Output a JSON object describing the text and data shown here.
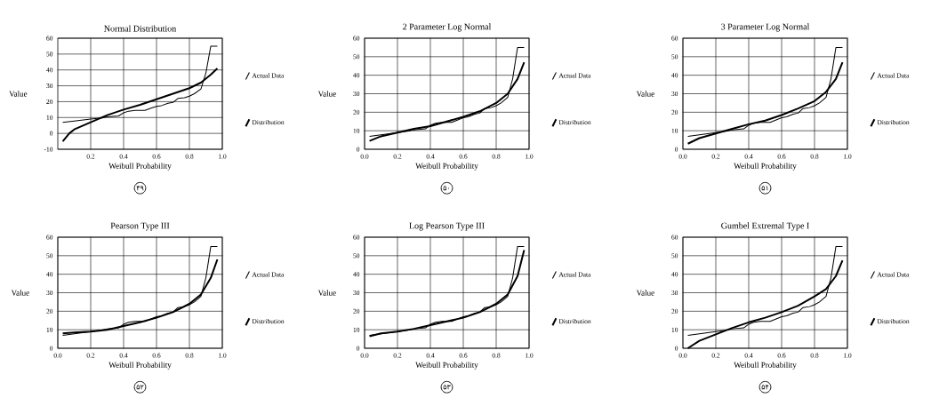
{
  "chart_data": [
    {
      "type": "line",
      "title": "Normal Distribution",
      "xlabel": "Weibull Probability",
      "ylabel": "Value",
      "annotations": [
        "۴۹"
      ],
      "grid": true,
      "legend": "right",
      "xlim": [
        0,
        1.0
      ],
      "ylim": [
        -10,
        60
      ],
      "xticks": [
        {
          "value": 0.2,
          "label": "0.2"
        },
        {
          "value": 0.4,
          "label": "0.4"
        },
        {
          "value": 0.6,
          "label": "0.6"
        },
        {
          "value": 0.8,
          "label": "0.8"
        },
        {
          "value": 1.0,
          "label": "1.0"
        }
      ],
      "yticks": [
        -10,
        0,
        10,
        20,
        30,
        40,
        50,
        60
      ],
      "series": [
        {
          "name": "Actual Data",
          "color": "#000000",
          "x": [
            0.03,
            0.1,
            0.2,
            0.27,
            0.3,
            0.37,
            0.4,
            0.43,
            0.47,
            0.53,
            0.57,
            0.6,
            0.63,
            0.67,
            0.7,
            0.73,
            0.77,
            0.8,
            0.83,
            0.87,
            0.9,
            0.93,
            0.97
          ],
          "values": [
            7,
            7.8,
            9,
            9.8,
            10.5,
            11,
            13,
            14,
            14.5,
            14.5,
            16,
            17,
            17.5,
            19,
            19.5,
            22,
            22.5,
            23.5,
            25,
            28,
            38,
            55,
            55
          ]
        },
        {
          "name": "Distribution",
          "color": "#000000",
          "x": [
            0.03,
            0.07,
            0.1,
            0.2,
            0.3,
            0.4,
            0.5,
            0.6,
            0.7,
            0.8,
            0.87,
            0.93,
            0.97
          ],
          "values": [
            -5,
            0,
            2.5,
            7,
            11.5,
            15,
            18,
            21.5,
            25,
            28.5,
            32,
            37,
            41
          ]
        }
      ]
    },
    {
      "type": "line",
      "title": "2 Parameter Log Normal",
      "xlabel": "Weibull Probability",
      "ylabel": "Value",
      "annotations": [
        "۵۰"
      ],
      "grid": true,
      "legend": "right",
      "xlim": [
        0,
        1.0
      ],
      "ylim": [
        0,
        60
      ],
      "xticks": [
        {
          "value": 0,
          "label": "0.0"
        },
        {
          "value": 0.2,
          "label": "0.2"
        },
        {
          "value": 0.4,
          "label": "0.4"
        },
        {
          "value": 0.6,
          "label": "0.6"
        },
        {
          "value": 0.8,
          "label": "0.8"
        },
        {
          "value": 1.0,
          "label": "1.0"
        }
      ],
      "yticks": [
        0,
        10,
        20,
        30,
        40,
        50,
        60
      ],
      "series": [
        {
          "name": "Actual Data",
          "color": "#000000",
          "x": [
            0.03,
            0.1,
            0.2,
            0.27,
            0.3,
            0.37,
            0.4,
            0.43,
            0.47,
            0.53,
            0.57,
            0.6,
            0.63,
            0.67,
            0.7,
            0.73,
            0.77,
            0.8,
            0.83,
            0.87,
            0.9,
            0.93,
            0.97
          ],
          "values": [
            7,
            7.8,
            9,
            9.8,
            10.5,
            11,
            13,
            14,
            14.5,
            14.5,
            16,
            17,
            17.5,
            19,
            19.5,
            22,
            22.5,
            23.5,
            25,
            28,
            38,
            55,
            55
          ]
        },
        {
          "name": "Distribution",
          "color": "#000000",
          "x": [
            0.03,
            0.1,
            0.2,
            0.3,
            0.4,
            0.5,
            0.6,
            0.7,
            0.8,
            0.87,
            0.93,
            0.97
          ],
          "values": [
            4.5,
            7,
            9,
            11,
            12.5,
            15,
            17.5,
            20.5,
            25,
            30,
            38,
            47
          ]
        }
      ]
    },
    {
      "type": "line",
      "title": "3 Parameter Log Normal",
      "xlabel": "Weibull Probability",
      "ylabel": "Value",
      "annotations": [
        "۵۱"
      ],
      "grid": true,
      "legend": "right",
      "xlim": [
        0,
        1.0
      ],
      "ylim": [
        0,
        60
      ],
      "xticks": [
        {
          "value": 0,
          "label": "0.0"
        },
        {
          "value": 0.2,
          "label": "0.2"
        },
        {
          "value": 0.4,
          "label": "0.4"
        },
        {
          "value": 0.6,
          "label": "0.6"
        },
        {
          "value": 0.8,
          "label": "0.8"
        },
        {
          "value": 1.0,
          "label": "1.0"
        }
      ],
      "yticks": [
        0,
        10,
        20,
        30,
        40,
        50,
        60
      ],
      "series": [
        {
          "name": "Actual Data",
          "color": "#000000",
          "x": [
            0.03,
            0.1,
            0.2,
            0.27,
            0.3,
            0.37,
            0.4,
            0.43,
            0.47,
            0.53,
            0.57,
            0.6,
            0.63,
            0.67,
            0.7,
            0.73,
            0.77,
            0.8,
            0.83,
            0.87,
            0.9,
            0.93,
            0.97
          ],
          "values": [
            7,
            7.8,
            9,
            9.8,
            10.5,
            11,
            13,
            14,
            14.5,
            14.5,
            16,
            17,
            17.5,
            19,
            19.5,
            22,
            22.5,
            23.5,
            25,
            28,
            38,
            55,
            55
          ]
        },
        {
          "name": "Distribution",
          "color": "#000000",
          "x": [
            0.03,
            0.1,
            0.2,
            0.3,
            0.4,
            0.5,
            0.6,
            0.7,
            0.8,
            0.87,
            0.93,
            0.97
          ],
          "values": [
            3,
            6,
            8.5,
            11,
            13.5,
            15.5,
            18.5,
            22,
            26,
            31,
            38,
            47
          ]
        }
      ]
    },
    {
      "type": "line",
      "title": "Pearson Type III",
      "xlabel": "Weibull Probability",
      "ylabel": "Value",
      "annotations": [
        "۵۲"
      ],
      "grid": true,
      "legend": "right",
      "xlim": [
        0,
        1.0
      ],
      "ylim": [
        0,
        60
      ],
      "xticks": [
        {
          "value": 0,
          "label": "0.0"
        },
        {
          "value": 0.2,
          "label": "0.2"
        },
        {
          "value": 0.4,
          "label": "0.4"
        },
        {
          "value": 0.6,
          "label": "0.6"
        },
        {
          "value": 0.8,
          "label": "0.8"
        },
        {
          "value": 1.0,
          "label": "1.0"
        }
      ],
      "yticks": [
        0,
        10,
        20,
        30,
        40,
        50,
        60
      ],
      "series": [
        {
          "name": "Actual Data",
          "color": "#000000",
          "x": [
            0.03,
            0.1,
            0.2,
            0.27,
            0.3,
            0.37,
            0.4,
            0.43,
            0.47,
            0.53,
            0.57,
            0.6,
            0.63,
            0.67,
            0.7,
            0.73,
            0.77,
            0.8,
            0.83,
            0.87,
            0.9,
            0.93,
            0.97
          ],
          "values": [
            7,
            7.8,
            9,
            9.8,
            10.5,
            11,
            13,
            14,
            14.5,
            14.5,
            16,
            17,
            17.5,
            19,
            19.5,
            22,
            22.5,
            23.5,
            25,
            28,
            38,
            55,
            55
          ]
        },
        {
          "name": "Distribution",
          "color": "#000000",
          "x": [
            0.03,
            0.1,
            0.2,
            0.3,
            0.4,
            0.5,
            0.6,
            0.7,
            0.8,
            0.87,
            0.93,
            0.97
          ],
          "values": [
            8,
            8.5,
            9,
            10,
            12,
            14,
            16.5,
            19.5,
            24,
            29,
            38,
            48
          ]
        }
      ]
    },
    {
      "type": "line",
      "title": "Log Pearson Type III",
      "xlabel": "Weibull Probability",
      "ylabel": "Value",
      "annotations": [
        "۵۳"
      ],
      "grid": true,
      "legend": "right",
      "xlim": [
        0,
        1.0
      ],
      "ylim": [
        0,
        60
      ],
      "xticks": [
        {
          "value": 0,
          "label": "0.0"
        },
        {
          "value": 0.2,
          "label": "0.2"
        },
        {
          "value": 0.4,
          "label": "0.4"
        },
        {
          "value": 0.6,
          "label": "0.6"
        },
        {
          "value": 0.8,
          "label": "0.8"
        },
        {
          "value": 1.0,
          "label": "1.0"
        }
      ],
      "yticks": [
        0,
        10,
        20,
        30,
        40,
        50,
        60
      ],
      "series": [
        {
          "name": "Actual Data",
          "color": "#000000",
          "x": [
            0.03,
            0.1,
            0.2,
            0.27,
            0.3,
            0.37,
            0.4,
            0.43,
            0.47,
            0.53,
            0.57,
            0.6,
            0.63,
            0.67,
            0.7,
            0.73,
            0.77,
            0.8,
            0.83,
            0.87,
            0.9,
            0.93,
            0.97
          ],
          "values": [
            7,
            7.8,
            9,
            9.8,
            10.5,
            11,
            13,
            14,
            14.5,
            14.5,
            16,
            17,
            17.5,
            19,
            19.5,
            22,
            22.5,
            23.5,
            25,
            28,
            38,
            55,
            55
          ]
        },
        {
          "name": "Distribution",
          "color": "#000000",
          "x": [
            0.03,
            0.1,
            0.2,
            0.3,
            0.4,
            0.5,
            0.6,
            0.7,
            0.8,
            0.87,
            0.93,
            0.97
          ],
          "values": [
            6.5,
            8,
            9,
            10.5,
            12.5,
            14.5,
            16.5,
            19.5,
            24,
            29,
            39,
            53
          ]
        }
      ]
    },
    {
      "type": "line",
      "title": "Gumbel Extremal Type I",
      "xlabel": "Weibull Probability",
      "ylabel": "Value",
      "annotations": [
        "۵۴"
      ],
      "grid": true,
      "legend": "right",
      "xlim": [
        0,
        1.0
      ],
      "ylim": [
        0,
        60
      ],
      "xticks": [
        {
          "value": 0,
          "label": "0.0"
        },
        {
          "value": 0.2,
          "label": "0.2"
        },
        {
          "value": 0.4,
          "label": "0.4"
        },
        {
          "value": 0.6,
          "label": "0.6"
        },
        {
          "value": 0.8,
          "label": "0.8"
        },
        {
          "value": 1.0,
          "label": "1.0"
        }
      ],
      "yticks": [
        0,
        10,
        20,
        30,
        40,
        50,
        60
      ],
      "series": [
        {
          "name": "Actual Data",
          "color": "#000000",
          "x": [
            0.03,
            0.1,
            0.2,
            0.27,
            0.3,
            0.37,
            0.4,
            0.43,
            0.47,
            0.53,
            0.57,
            0.6,
            0.63,
            0.67,
            0.7,
            0.73,
            0.77,
            0.8,
            0.83,
            0.87,
            0.9,
            0.93,
            0.97
          ],
          "values": [
            7,
            7.8,
            9,
            9.8,
            10.5,
            11,
            13,
            14,
            14.5,
            14.5,
            16,
            17,
            17.5,
            19,
            19.5,
            22,
            22.5,
            23.5,
            25,
            28,
            38,
            55,
            55
          ]
        },
        {
          "name": "Distribution",
          "color": "#000000",
          "x": [
            0.03,
            0.1,
            0.2,
            0.3,
            0.4,
            0.5,
            0.6,
            0.7,
            0.8,
            0.87,
            0.93,
            0.97
          ],
          "values": [
            0,
            4,
            7.5,
            11,
            14,
            16.5,
            19.5,
            23,
            28,
            32,
            39,
            47.5
          ]
        }
      ]
    }
  ]
}
